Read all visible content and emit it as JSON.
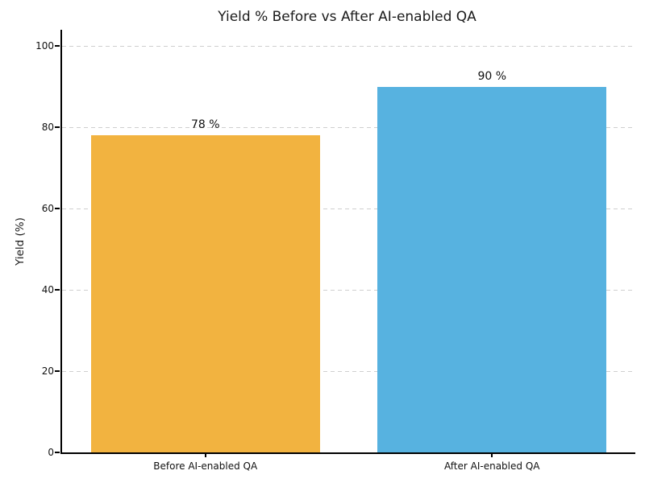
{
  "chart_data": {
    "type": "bar",
    "title": "Yield % Before vs After AI-enabled QA",
    "ylabel": "Yield (%)",
    "xlabel": "",
    "categories": [
      "Before AI-enabled QA",
      "After AI-enabled QA"
    ],
    "values": [
      78,
      90
    ],
    "value_labels": [
      "78 %",
      "90 %"
    ],
    "bar_colors": [
      "#F2B340",
      "#57B2E0"
    ],
    "yticks": [
      0,
      20,
      40,
      60,
      80,
      100
    ],
    "ylim": [
      0,
      104
    ],
    "bar_width_fraction": 0.8,
    "grid": {
      "axis": "y",
      "style": "dashed",
      "color": "#cfcfcf"
    },
    "legend": "none",
    "colors": {
      "axis": "#000000",
      "text": "#1a1a1a",
      "background": "#ffffff"
    }
  }
}
